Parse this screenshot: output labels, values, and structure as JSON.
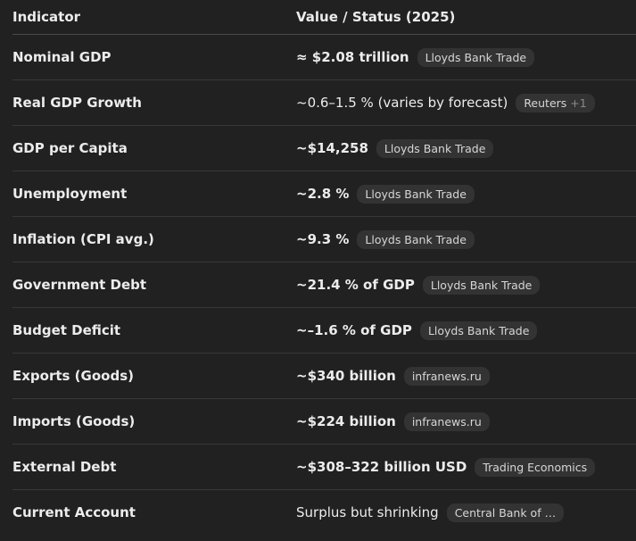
{
  "header": {
    "col1": "Indicator",
    "col2": "Value / Status (2025)"
  },
  "rows": [
    {
      "indicator": "Nominal GDP",
      "value": "≈ $2.08 trillion",
      "source": "Lloyds Bank Trade",
      "extra": ""
    },
    {
      "indicator": "Real GDP Growth",
      "value": "~0.6–1.5 % (varies by forecast)",
      "source": "Reuters",
      "extra": "+1"
    },
    {
      "indicator": "GDP per Capita",
      "value": "~$14,258",
      "source": "Lloyds Bank Trade",
      "extra": ""
    },
    {
      "indicator": "Unemployment",
      "value": "~2.8 %",
      "source": "Lloyds Bank Trade",
      "extra": ""
    },
    {
      "indicator": "Inflation (CPI avg.)",
      "value": "~9.3 %",
      "source": "Lloyds Bank Trade",
      "extra": ""
    },
    {
      "indicator": "Government Debt",
      "value": "~21.4 % of GDP",
      "source": "Lloyds Bank Trade",
      "extra": ""
    },
    {
      "indicator": "Budget Deficit",
      "value": "~–1.6 % of GDP",
      "source": "Lloyds Bank Trade",
      "extra": ""
    },
    {
      "indicator": "Exports (Goods)",
      "value": "~$340 billion",
      "source": "infranews.ru",
      "extra": ""
    },
    {
      "indicator": "Imports (Goods)",
      "value": "~$224 billion",
      "source": "infranews.ru",
      "extra": ""
    },
    {
      "indicator": "External Debt",
      "value": "~$308–322 billion USD",
      "source": "Trading Economics",
      "extra": ""
    },
    {
      "indicator": "Current Account",
      "value": "Surplus but shrinking",
      "source": "Central Bank of …",
      "extra": ""
    }
  ]
}
